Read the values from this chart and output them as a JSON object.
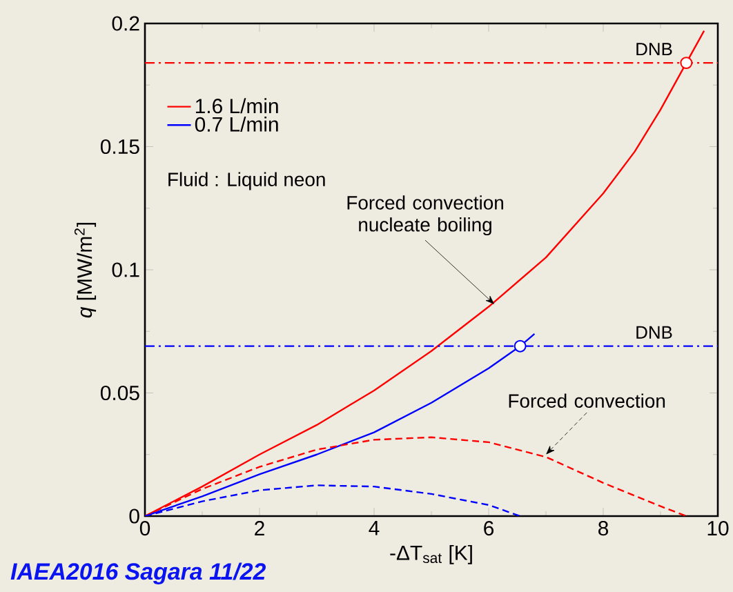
{
  "chart_data": {
    "type": "line",
    "xlabel": "-ΔT$_{sat}$ [K]",
    "ylabel": "*q* [MW/m$^{2}$]",
    "xlim": [
      0,
      10
    ],
    "ylim": [
      0,
      0.2
    ],
    "xticks": [
      0,
      2,
      4,
      6,
      8,
      10
    ],
    "yticks": [
      0,
      0.05,
      0.1,
      0.15,
      0.2
    ],
    "legend": "top left",
    "grid": false,
    "series": [
      {
        "name": "1.6 L/min",
        "color": "#ff0000",
        "line_style": "solid",
        "x": [
          0,
          1,
          2,
          3,
          4,
          5,
          6,
          7,
          8,
          8.55,
          9,
          9.45,
          9.76
        ],
        "values": [
          0,
          0.012,
          0.025,
          0.037,
          0.051,
          0.067,
          0.085,
          0.105,
          0.131,
          0.148,
          0.165,
          0.184,
          0.197
        ]
      },
      {
        "name": "0.7 L/min",
        "color": "#0000ff",
        "line_style": "solid",
        "x": [
          0,
          1,
          2,
          3,
          4,
          5,
          6,
          6.55,
          6.8
        ],
        "values": [
          0,
          0.008,
          0.017,
          0.025,
          0.034,
          0.046,
          0.06,
          0.069,
          0.074
        ]
      },
      {
        "color": "#ff0000",
        "line_style": "dashed",
        "x": [
          0,
          1,
          2,
          3,
          4,
          5,
          6,
          7,
          8,
          9,
          9.45
        ],
        "values": [
          0,
          0.011,
          0.02,
          0.027,
          0.031,
          0.032,
          0.03,
          0.024,
          0.0135,
          0.004,
          0
        ]
      },
      {
        "color": "#0000ff",
        "line_style": "dashed",
        "x": [
          0,
          1,
          2,
          3,
          4,
          5,
          6,
          6.55
        ],
        "values": [
          0,
          0.006,
          0.0105,
          0.0125,
          0.012,
          0.009,
          0.0045,
          0
        ]
      },
      {
        "type": "scatter",
        "color": "#ff0000",
        "marker": "circle",
        "x": [
          9.45
        ],
        "values": [
          0.184
        ]
      },
      {
        "type": "scatter",
        "color": "#0000ff",
        "marker": "circle",
        "x": [
          6.55
        ],
        "values": [
          0.069
        ]
      }
    ],
    "ref_lines": [
      {
        "axis": "y",
        "value": 0.184,
        "label": "DNB",
        "color": "#ff0000",
        "line_style": "dashdot"
      },
      {
        "axis": "y",
        "value": 0.069,
        "label": "DNB",
        "color": "#0000ff",
        "line_style": "dashdot"
      }
    ],
    "annotations": [
      "Fluid : Liquid neon",
      {
        "text": "Forced convection nucleate boiling",
        "x": 6.1,
        "y": 0.086
      },
      {
        "text": "Forced convection",
        "x": 7,
        "y": 0.025
      },
      "IAEA2016 Sagara 11/22"
    ]
  }
}
